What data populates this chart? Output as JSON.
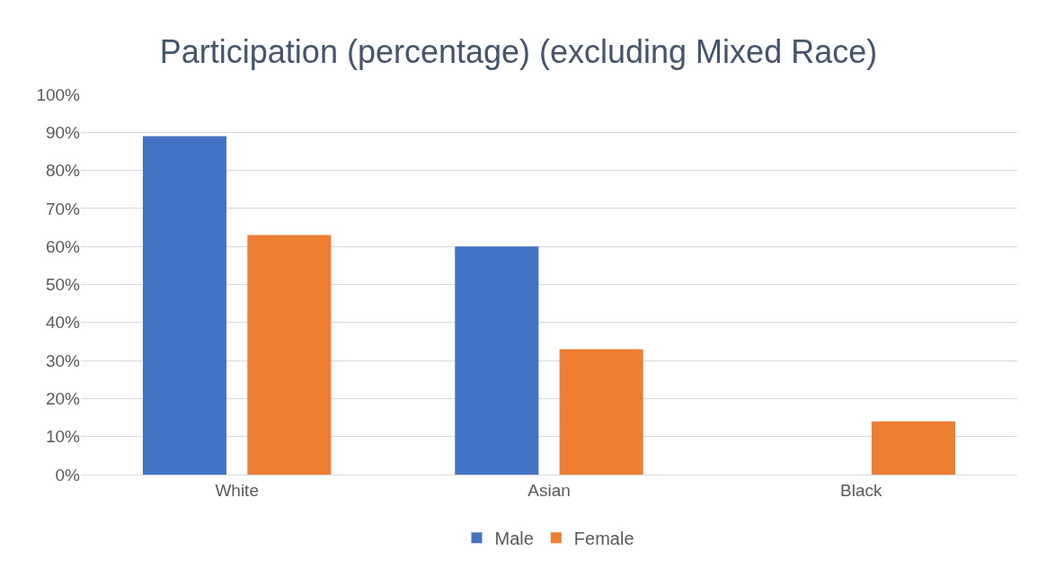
{
  "chart_data": {
    "type": "bar",
    "title": "Participation (percentage) (excluding Mixed Race)",
    "categories": [
      "White",
      "Asian",
      "Black"
    ],
    "series": [
      {
        "name": "Male",
        "color": "#4472c4",
        "values": [
          89,
          60,
          0
        ]
      },
      {
        "name": "Female",
        "color": "#ed7d31",
        "values": [
          63,
          33,
          14
        ]
      }
    ],
    "ylim": [
      0,
      100
    ],
    "yticks": [
      {
        "value": 0,
        "label": "0%"
      },
      {
        "value": 10,
        "label": "10%"
      },
      {
        "value": 20,
        "label": "20%"
      },
      {
        "value": 30,
        "label": "30%"
      },
      {
        "value": 40,
        "label": "40%"
      },
      {
        "value": 50,
        "label": "50%"
      },
      {
        "value": 60,
        "label": "60%"
      },
      {
        "value": 70,
        "label": "70%"
      },
      {
        "value": 80,
        "label": "80%"
      },
      {
        "value": 90,
        "label": "90%"
      },
      {
        "value": 100,
        "label": "100%"
      }
    ],
    "grid": "y",
    "legend": "bottom"
  }
}
